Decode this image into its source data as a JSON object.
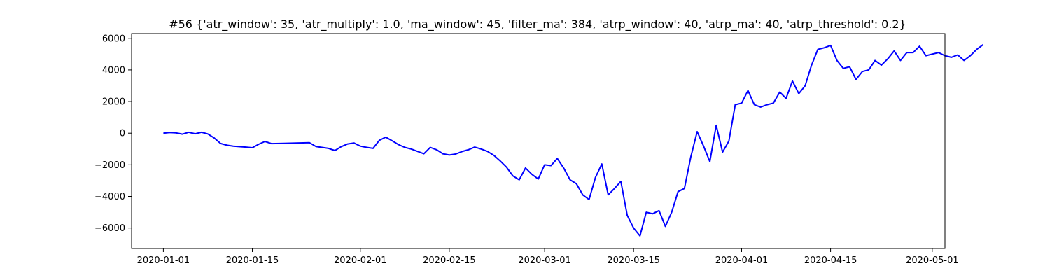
{
  "chart_data": {
    "type": "line",
    "title": "#56 {'atr_window': 35, 'atr_multiply': 1.0, 'ma_window': 45, 'filter_ma': 384, 'atrp_window': 40, 'atrp_ma': 40, 'atrp_threshold': 0.2}",
    "xlabel": "",
    "ylabel": "",
    "x_type": "date",
    "xlim": [
      "2019-12-27",
      "2020-05-03"
    ],
    "ylim": [
      -7300,
      6300
    ],
    "x_ticks": [
      "2020-01-01",
      "2020-01-15",
      "2020-02-01",
      "2020-02-15",
      "2020-03-01",
      "2020-03-15",
      "2020-04-01",
      "2020-04-15",
      "2020-05-01"
    ],
    "y_ticks": [
      -6000,
      -4000,
      -2000,
      0,
      2000,
      4000,
      6000
    ],
    "grid": false,
    "series": [
      {
        "color": "#0000ff",
        "points": [
          [
            "2020-01-01",
            0
          ],
          [
            "2020-01-02",
            40
          ],
          [
            "2020-01-03",
            20
          ],
          [
            "2020-01-04",
            -60
          ],
          [
            "2020-01-05",
            60
          ],
          [
            "2020-01-06",
            -40
          ],
          [
            "2020-01-07",
            60
          ],
          [
            "2020-01-08",
            -50
          ],
          [
            "2020-01-09",
            -300
          ],
          [
            "2020-01-10",
            -650
          ],
          [
            "2020-01-11",
            -760
          ],
          [
            "2020-01-12",
            -820
          ],
          [
            "2020-01-14",
            -880
          ],
          [
            "2020-01-15",
            -920
          ],
          [
            "2020-01-16",
            -700
          ],
          [
            "2020-01-17",
            -520
          ],
          [
            "2020-01-18",
            -660
          ],
          [
            "2020-01-20",
            -640
          ],
          [
            "2020-01-22",
            -620
          ],
          [
            "2020-01-24",
            -600
          ],
          [
            "2020-01-25",
            -840
          ],
          [
            "2020-01-27",
            -960
          ],
          [
            "2020-01-28",
            -1100
          ],
          [
            "2020-01-29",
            -850
          ],
          [
            "2020-01-30",
            -680
          ],
          [
            "2020-01-31",
            -620
          ],
          [
            "2020-02-01",
            -820
          ],
          [
            "2020-02-02",
            -900
          ],
          [
            "2020-02-03",
            -960
          ],
          [
            "2020-02-04",
            -450
          ],
          [
            "2020-02-05",
            -250
          ],
          [
            "2020-02-06",
            -480
          ],
          [
            "2020-02-07",
            -720
          ],
          [
            "2020-02-08",
            -900
          ],
          [
            "2020-02-09",
            -1000
          ],
          [
            "2020-02-10",
            -1150
          ],
          [
            "2020-02-11",
            -1300
          ],
          [
            "2020-02-12",
            -900
          ],
          [
            "2020-02-13",
            -1050
          ],
          [
            "2020-02-14",
            -1300
          ],
          [
            "2020-02-15",
            -1380
          ],
          [
            "2020-02-16",
            -1320
          ],
          [
            "2020-02-17",
            -1160
          ],
          [
            "2020-02-18",
            -1050
          ],
          [
            "2020-02-19",
            -880
          ],
          [
            "2020-02-20",
            -1000
          ],
          [
            "2020-02-21",
            -1150
          ],
          [
            "2020-02-22",
            -1400
          ],
          [
            "2020-02-23",
            -1750
          ],
          [
            "2020-02-24",
            -2150
          ],
          [
            "2020-02-25",
            -2700
          ],
          [
            "2020-02-26",
            -2950
          ],
          [
            "2020-02-27",
            -2200
          ],
          [
            "2020-02-28",
            -2600
          ],
          [
            "2020-02-29",
            -2900
          ],
          [
            "2020-03-01",
            -2000
          ],
          [
            "2020-03-02",
            -2050
          ],
          [
            "2020-03-03",
            -1600
          ],
          [
            "2020-03-04",
            -2200
          ],
          [
            "2020-03-05",
            -2950
          ],
          [
            "2020-03-06",
            -3200
          ],
          [
            "2020-03-07",
            -3900
          ],
          [
            "2020-03-08",
            -4200
          ],
          [
            "2020-03-09",
            -2800
          ],
          [
            "2020-03-10",
            -1950
          ],
          [
            "2020-03-11",
            -3900
          ],
          [
            "2020-03-12",
            -3500
          ],
          [
            "2020-03-13",
            -3050
          ],
          [
            "2020-03-14",
            -5200
          ],
          [
            "2020-03-15",
            -6000
          ],
          [
            "2020-03-16",
            -6500
          ],
          [
            "2020-03-17",
            -5000
          ],
          [
            "2020-03-18",
            -5100
          ],
          [
            "2020-03-19",
            -4900
          ],
          [
            "2020-03-20",
            -5900
          ],
          [
            "2020-03-21",
            -5000
          ],
          [
            "2020-03-22",
            -3700
          ],
          [
            "2020-03-23",
            -3500
          ],
          [
            "2020-03-24",
            -1500
          ],
          [
            "2020-03-25",
            100
          ],
          [
            "2020-03-26",
            -800
          ],
          [
            "2020-03-27",
            -1800
          ],
          [
            "2020-03-28",
            500
          ],
          [
            "2020-03-29",
            -1200
          ],
          [
            "2020-03-30",
            -500
          ],
          [
            "2020-03-31",
            1800
          ],
          [
            "2020-04-01",
            1900
          ],
          [
            "2020-04-02",
            2700
          ],
          [
            "2020-04-03",
            1800
          ],
          [
            "2020-04-04",
            1650
          ],
          [
            "2020-04-05",
            1800
          ],
          [
            "2020-04-06",
            1900
          ],
          [
            "2020-04-07",
            2600
          ],
          [
            "2020-04-08",
            2200
          ],
          [
            "2020-04-09",
            3300
          ],
          [
            "2020-04-10",
            2500
          ],
          [
            "2020-04-11",
            3000
          ],
          [
            "2020-04-12",
            4300
          ],
          [
            "2020-04-13",
            5300
          ],
          [
            "2020-04-14",
            5400
          ],
          [
            "2020-04-15",
            5550
          ],
          [
            "2020-04-16",
            4600
          ],
          [
            "2020-04-17",
            4100
          ],
          [
            "2020-04-18",
            4200
          ],
          [
            "2020-04-19",
            3400
          ],
          [
            "2020-04-20",
            3900
          ],
          [
            "2020-04-21",
            4000
          ],
          [
            "2020-04-22",
            4600
          ],
          [
            "2020-04-23",
            4300
          ],
          [
            "2020-04-24",
            4700
          ],
          [
            "2020-04-25",
            5200
          ],
          [
            "2020-04-26",
            4600
          ],
          [
            "2020-04-27",
            5100
          ],
          [
            "2020-04-28",
            5100
          ],
          [
            "2020-04-29",
            5500
          ],
          [
            "2020-04-30",
            4900
          ],
          [
            "2020-05-01",
            5000
          ],
          [
            "2020-05-02",
            5100
          ],
          [
            "2020-05-03",
            4900
          ],
          [
            "2020-05-04",
            4800
          ],
          [
            "2020-05-05",
            4950
          ],
          [
            "2020-05-06",
            4600
          ],
          [
            "2020-05-07",
            4900
          ],
          [
            "2020-05-08",
            5300
          ],
          [
            "2020-05-09",
            5600
          ]
        ]
      }
    ]
  }
}
